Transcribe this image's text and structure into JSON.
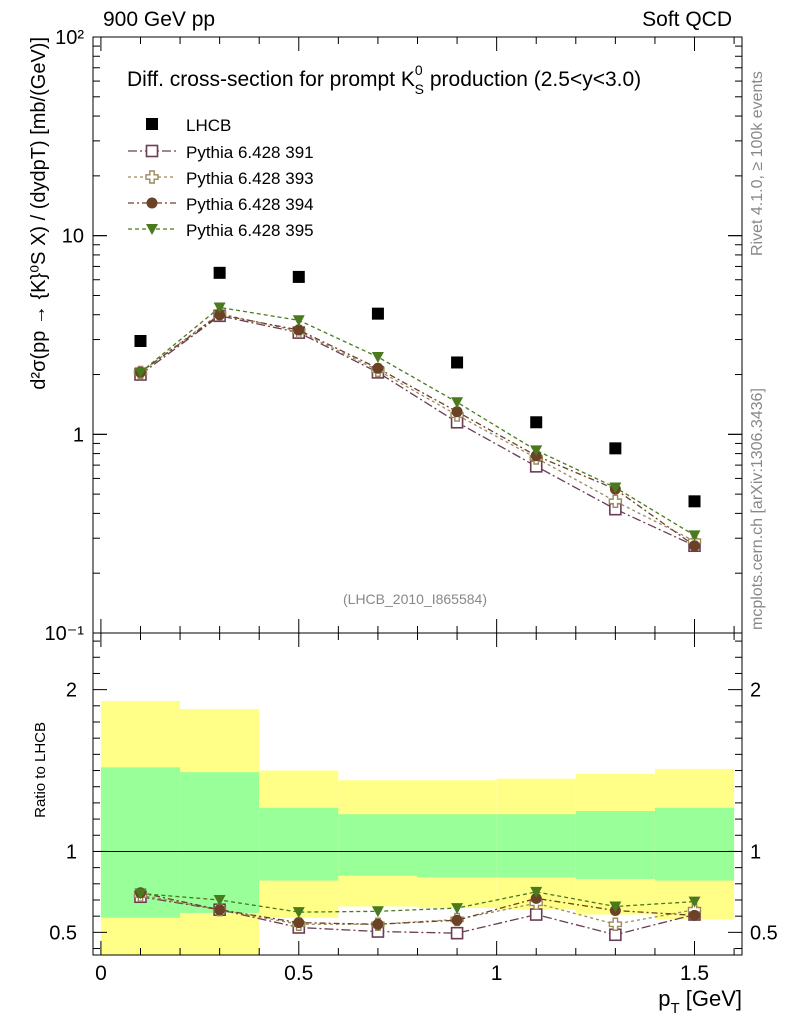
{
  "header": {
    "left": "900 GeV pp",
    "right": "Soft QCD"
  },
  "side_labels": {
    "rivet": "Rivet 4.1.0, ≥ 100k events",
    "url": "mcplots.cern.ch [arXiv:1306.3436]"
  },
  "colors": {
    "data": "#000000",
    "s391": "#6b3d55",
    "s393": "#9c8a5e",
    "s394": "#6b4226",
    "s395": "#4a7a1e",
    "band_inner": "#99ff99",
    "band_outer": "#ffff88"
  },
  "chart_data": [
    {
      "type": "scatter",
      "title": "Diff. cross-section for prompt K⁰S production (2.5<y<3.0)",
      "title_parts": {
        "main": "Diff. cross-section for prompt K",
        "sup": "0",
        "sub": "S",
        "tail": " production (2.5<y<3.0)"
      },
      "ylabel": "d²σ(pp → {K}⁰S X) / (dydpT) [mb/(GeV)]",
      "yscale": "log",
      "ylim": [
        0.1,
        100
      ],
      "xlim": [
        -0.02,
        1.62
      ],
      "watermark": "(LHCB_2010_I865584)",
      "y_tick_labels": [
        "10⁻¹",
        "1",
        "10",
        "10²"
      ],
      "x": [
        0.1,
        0.3,
        0.5,
        0.7,
        0.9,
        1.1,
        1.3,
        1.5
      ],
      "series": [
        {
          "name": "LHCB",
          "key": "data",
          "marker": "square-filled",
          "values": [
            2.95,
            6.5,
            6.2,
            4.05,
            2.3,
            1.15,
            0.85,
            0.46
          ]
        },
        {
          "name": "Pythia 6.428 391",
          "key": "s391",
          "marker": "square-open",
          "values": [
            2.0,
            3.95,
            3.25,
            2.05,
            1.15,
            0.69,
            0.42,
            0.275
          ]
        },
        {
          "name": "Pythia 6.428 393",
          "key": "s393",
          "marker": "cross-open",
          "values": [
            2.05,
            4.05,
            3.3,
            2.1,
            1.25,
            0.76,
            0.46,
            0.29
          ]
        },
        {
          "name": "Pythia 6.428 394",
          "key": "s394",
          "marker": "circle-filled",
          "values": [
            2.05,
            4.0,
            3.35,
            2.15,
            1.3,
            0.78,
            0.53,
            0.275
          ]
        },
        {
          "name": "Pythia 6.428 395",
          "key": "s395",
          "marker": "triangle-down-filled",
          "values": [
            2.05,
            4.35,
            3.75,
            2.45,
            1.45,
            0.83,
            0.54,
            0.31
          ]
        }
      ]
    },
    {
      "type": "line",
      "ylabel": "Ratio to LHCB",
      "xlabel": "p_T [GeV]",
      "xlabel_parts": {
        "main": "p",
        "sub": "T",
        "tail": " [GeV]"
      },
      "ylim": [
        0.36,
        2.35
      ],
      "xlim": [
        -0.02,
        1.62
      ],
      "x_tick_labels": [
        "0",
        "0.5",
        "1",
        "1.5"
      ],
      "y_tick_labels": [
        "0.5",
        "1",
        "2"
      ],
      "bins": [
        [
          0.0,
          0.2
        ],
        [
          0.2,
          0.4
        ],
        [
          0.4,
          0.6
        ],
        [
          0.6,
          0.8
        ],
        [
          0.8,
          1.0
        ],
        [
          1.0,
          1.2
        ],
        [
          1.2,
          1.4
        ],
        [
          1.4,
          1.6
        ]
      ],
      "band_inner": [
        [
          0.59,
          1.52
        ],
        [
          0.62,
          1.49
        ],
        [
          0.82,
          1.27
        ],
        [
          0.85,
          1.23
        ],
        [
          0.84,
          1.23
        ],
        [
          0.84,
          1.23
        ],
        [
          0.83,
          1.25
        ],
        [
          0.82,
          1.27
        ]
      ],
      "band_outer": [
        [
          0.36,
          1.93
        ],
        [
          0.36,
          1.88
        ],
        [
          0.59,
          1.5
        ],
        [
          0.66,
          1.44
        ],
        [
          0.65,
          1.44
        ],
        [
          0.64,
          1.45
        ],
        [
          0.61,
          1.48
        ],
        [
          0.58,
          1.51
        ]
      ],
      "x": [
        0.1,
        0.3,
        0.5,
        0.7,
        0.9,
        1.1,
        1.3,
        1.5
      ],
      "series": [
        {
          "name": "Pythia 6.428 391",
          "key": "s391",
          "marker": "square-open",
          "values": [
            0.72,
            0.64,
            0.53,
            0.505,
            0.495,
            0.61,
            0.485,
            0.61
          ]
        },
        {
          "name": "Pythia 6.428 393",
          "key": "s393",
          "marker": "cross-open",
          "values": [
            0.73,
            0.64,
            0.55,
            0.55,
            0.58,
            0.68,
            0.55,
            0.64
          ]
        },
        {
          "name": "Pythia 6.428 394",
          "key": "s394",
          "marker": "circle-filled",
          "values": [
            0.745,
            0.64,
            0.56,
            0.55,
            0.575,
            0.71,
            0.635,
            0.605
          ]
        },
        {
          "name": "Pythia 6.428 395",
          "key": "s395",
          "marker": "triangle-down-filled",
          "values": [
            0.74,
            0.7,
            0.625,
            0.63,
            0.65,
            0.75,
            0.66,
            0.69
          ]
        }
      ]
    }
  ]
}
